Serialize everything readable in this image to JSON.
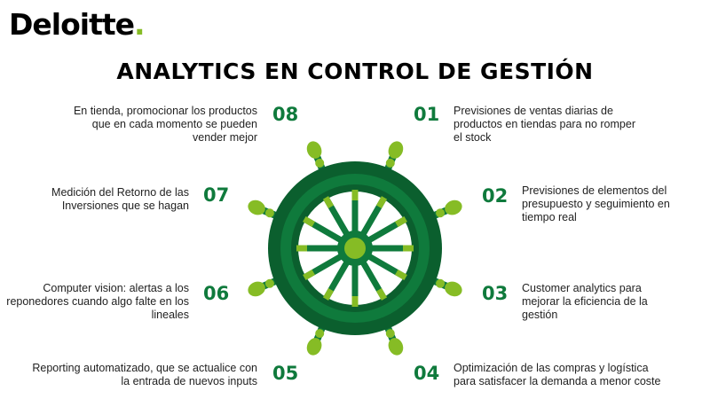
{
  "brand": {
    "name": "Deloitte",
    "dot": ".",
    "accent_color": "#86BC25",
    "primary_green": "#0F7A3C",
    "dark_green": "#0B5F2E"
  },
  "title": "ANALYTICS EN CONTROL DE GESTIÓN",
  "items": [
    {
      "number": "01",
      "lines": [
        "Previsiones de ventas diarias de",
        "productos en tiendas para no romper",
        "el stock"
      ]
    },
    {
      "number": "02",
      "lines": [
        "Previsiones de elementos del",
        "presupuesto y seguimiento en",
        "tiempo real"
      ]
    },
    {
      "number": "03",
      "lines": [
        "Customer analytics para",
        "mejorar la eficiencia de la",
        "gestión"
      ]
    },
    {
      "number": "04",
      "lines": [
        "Optimización de las compras y logística",
        "para satisfacer la demanda a menor coste"
      ]
    },
    {
      "number": "05",
      "lines": [
        "Reporting automatizado, que se actualice con",
        "la entrada de nuevos inputs"
      ]
    },
    {
      "number": "06",
      "lines": [
        "Computer vision: alertas a los",
        "reponedores cuando algo falte en los",
        "lineales"
      ]
    },
    {
      "number": "07",
      "lines": [
        "Medición del Retorno de las",
        "Inversiones que se hagan"
      ]
    },
    {
      "number": "08",
      "lines": [
        "En tienda, promocionar los productos",
        "que en cada momento se pueden",
        "vender mejor"
      ]
    }
  ],
  "icons": {
    "wheel": "ship-wheel-icon"
  }
}
